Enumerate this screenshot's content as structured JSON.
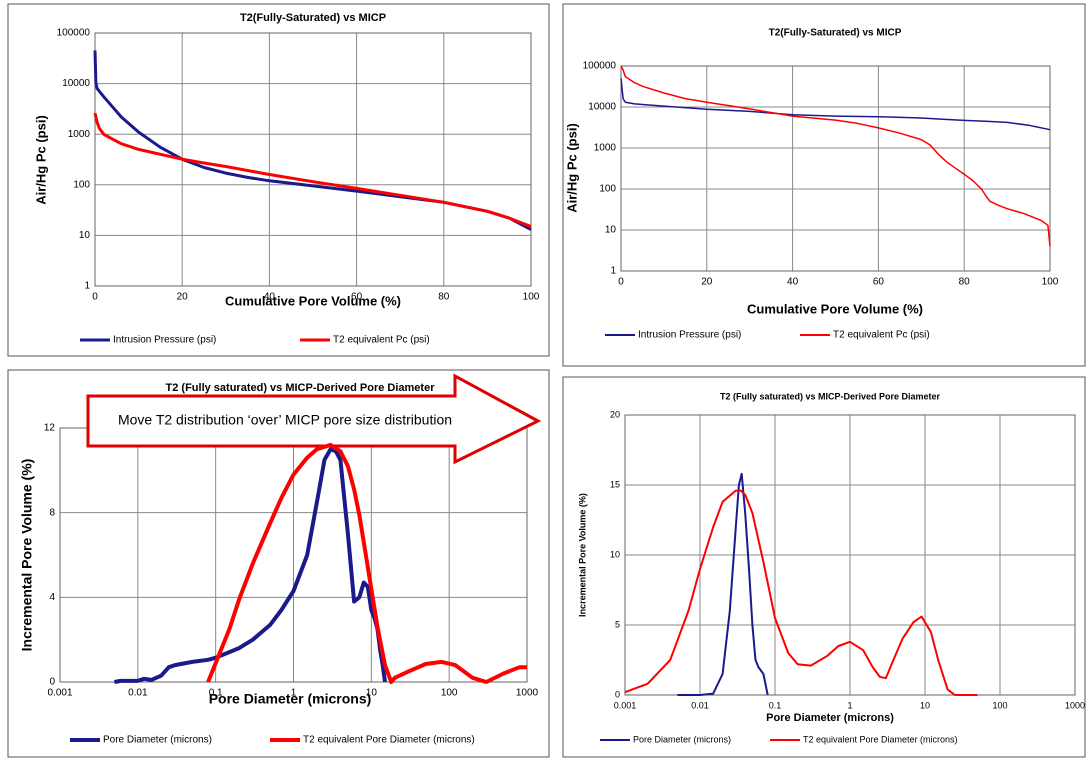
{
  "chart_data": [
    {
      "type": "line",
      "title": "T2(Fully-Saturated) vs MICP",
      "x_label": "Cumulative Pore Volume (%)",
      "y_label": "Air/Hg Pc (psi)",
      "xlim": [
        0,
        100
      ],
      "xticks": [
        0,
        20,
        40,
        60,
        80,
        100
      ],
      "ylim": [
        1,
        100000
      ],
      "yticks": [
        1,
        10,
        100,
        1000,
        10000,
        100000
      ],
      "yscale": "log",
      "grid": true,
      "series": [
        {
          "name": "Intrusion Pressure (psi)",
          "color": "#1a1a8c",
          "x": [
            0,
            0.2,
            0.5,
            1,
            2,
            4,
            6,
            10,
            15,
            20,
            25,
            30,
            35,
            40,
            50,
            60,
            70,
            80,
            90,
            95,
            100
          ],
          "values": [
            45000,
            10000,
            8000,
            7000,
            5500,
            3500,
            2200,
            1100,
            550,
            320,
            220,
            170,
            140,
            120,
            95,
            75,
            58,
            45,
            30,
            22,
            13
          ]
        },
        {
          "name": "T2 equivalent Pc (psi)",
          "color": "#ff0000",
          "x": [
            0,
            0.5,
            1,
            2,
            4,
            6,
            10,
            15,
            20,
            25,
            30,
            40,
            50,
            60,
            70,
            80,
            90,
            95,
            100
          ],
          "values": [
            2600,
            1700,
            1300,
            1000,
            800,
            650,
            500,
            400,
            320,
            270,
            230,
            160,
            115,
            85,
            62,
            45,
            30,
            22,
            15
          ]
        }
      ]
    },
    {
      "type": "line",
      "title": "T2(Fully-Saturated) vs MICP",
      "x_label": "Cumulative Pore Volume (%)",
      "y_label": "Air/Hg Pc (psi)",
      "xlim": [
        0,
        100
      ],
      "xticks": [
        0,
        20,
        40,
        60,
        80,
        100
      ],
      "ylim": [
        1,
        100000
      ],
      "yticks": [
        1,
        10,
        100,
        1000,
        10000,
        100000
      ],
      "yscale": "log",
      "grid": true,
      "series": [
        {
          "name": "Intrusion Pressure (psi)",
          "color": "#1a1a8c",
          "x": [
            0,
            0.5,
            1,
            3,
            5,
            10,
            20,
            30,
            40,
            50,
            60,
            70,
            75,
            80,
            85,
            90,
            95,
            100
          ],
          "values": [
            50000,
            16000,
            13000,
            12000,
            11500,
            10500,
            8800,
            7800,
            6500,
            6000,
            5800,
            5400,
            5000,
            4700,
            4500,
            4200,
            3600,
            2800
          ]
        },
        {
          "name": "T2 equivalent Pc (psi)",
          "color": "#ff0000",
          "x": [
            0,
            0.5,
            1,
            3,
            5,
            10,
            15,
            20,
            30,
            40,
            50,
            55,
            60,
            65,
            70,
            72,
            74,
            76,
            78,
            80,
            82,
            84,
            85,
            86,
            88,
            90,
            94,
            98,
            99.5,
            100
          ],
          "values": [
            100000,
            80000,
            55000,
            40000,
            32000,
            22000,
            16000,
            13000,
            9000,
            6000,
            4800,
            4000,
            3100,
            2300,
            1600,
            1200,
            700,
            450,
            320,
            230,
            160,
            100,
            70,
            50,
            40,
            33,
            25,
            17,
            13,
            4
          ]
        }
      ]
    },
    {
      "type": "line",
      "title": "T2 (Fully saturated) vs MICP-Derived Pore Diameter",
      "x_label": "Pore Diameter (microns)",
      "y_label": "Incremental  Pore Volume  (%)",
      "annotation": "Move T2 distribution ‘over’ MICP pore size distribution",
      "xlim": [
        0.001,
        1000
      ],
      "xticks": [
        0.001,
        0.01,
        0.1,
        1,
        10,
        100,
        1000
      ],
      "xscale": "log",
      "ylim": [
        0,
        12
      ],
      "yticks": [
        0,
        4,
        8,
        12
      ],
      "grid": true,
      "series": [
        {
          "name": "Pore Diameter (microns)",
          "color": "#1a1a8c",
          "x": [
            0.005,
            0.006,
            0.01,
            0.012,
            0.015,
            0.02,
            0.025,
            0.03,
            0.05,
            0.08,
            0.1,
            0.2,
            0.3,
            0.5,
            0.7,
            1,
            1.5,
            2,
            2.5,
            3,
            3.5,
            4,
            5,
            6,
            7,
            8,
            9,
            10,
            11,
            12,
            13,
            14,
            15
          ],
          "values": [
            0,
            0.05,
            0.05,
            0.15,
            0.1,
            0.3,
            0.7,
            0.8,
            0.95,
            1.05,
            1.15,
            1.6,
            2.0,
            2.7,
            3.4,
            4.3,
            6.0,
            8.5,
            10.5,
            11,
            10.9,
            10.5,
            7,
            3.8,
            4.0,
            4.7,
            4.5,
            3.4,
            3.0,
            2.5,
            1.5,
            0.8,
            0
          ]
        },
        {
          "name": "T2 equivalent Pore Diameter (microns)",
          "color": "#ff0000",
          "x": [
            0.08,
            0.1,
            0.15,
            0.2,
            0.3,
            0.5,
            0.7,
            1,
            1.5,
            2,
            3,
            4,
            5,
            6,
            7,
            8,
            10,
            12,
            15,
            18,
            20,
            30,
            50,
            80,
            120,
            200,
            300,
            500,
            800,
            1000
          ],
          "values": [
            0,
            0.9,
            2.5,
            3.9,
            5.6,
            7.5,
            8.7,
            9.8,
            10.6,
            11.0,
            11.2,
            10.9,
            10.2,
            9.1,
            7.9,
            6.6,
            4.4,
            2.6,
            0.8,
            0,
            0.2,
            0.5,
            0.85,
            0.95,
            0.8,
            0.2,
            0,
            0.4,
            0.7,
            0.7
          ]
        }
      ]
    },
    {
      "type": "line",
      "title": "T2 (Fully saturated) vs MICP-Derived Pore Diameter",
      "x_label": "Pore Diameter (microns)",
      "y_label": "Incremental Pore Volume (%)",
      "xlim": [
        0.001,
        1000
      ],
      "xticks": [
        0.001,
        0.01,
        0.1,
        1,
        10,
        100,
        1000
      ],
      "xscale": "log",
      "ylim": [
        0,
        20
      ],
      "yticks": [
        0,
        5,
        10,
        15,
        20
      ],
      "grid": true,
      "series": [
        {
          "name": "Pore Diameter (microns)",
          "color": "#1a1a8c",
          "x": [
            0.005,
            0.01,
            0.015,
            0.02,
            0.025,
            0.03,
            0.033,
            0.036,
            0.04,
            0.045,
            0.05,
            0.055,
            0.06,
            0.07,
            0.08
          ],
          "values": [
            0,
            0,
            0.1,
            1.5,
            6,
            12,
            15,
            15.8,
            13,
            9,
            5,
            2.5,
            2,
            1.5,
            0
          ]
        },
        {
          "name": "T2 equivalent Pore Diameter (microns)",
          "color": "#ff0000",
          "x": [
            0.001,
            0.002,
            0.004,
            0.007,
            0.01,
            0.015,
            0.02,
            0.03,
            0.035,
            0.04,
            0.05,
            0.07,
            0.1,
            0.15,
            0.2,
            0.3,
            0.5,
            0.7,
            1,
            1.5,
            2,
            2.5,
            3,
            4,
            5,
            7,
            9,
            12,
            15,
            20,
            25,
            50
          ],
          "values": [
            0.2,
            0.8,
            2.5,
            6,
            9,
            12,
            13.8,
            14.6,
            14.6,
            14.3,
            13,
            9.5,
            5.5,
            3,
            2.2,
            2.1,
            2.8,
            3.5,
            3.8,
            3.2,
            2.0,
            1.3,
            1.2,
            2.8,
            4.0,
            5.2,
            5.6,
            4.5,
            2.5,
            0.4,
            0,
            0
          ]
        }
      ]
    }
  ]
}
